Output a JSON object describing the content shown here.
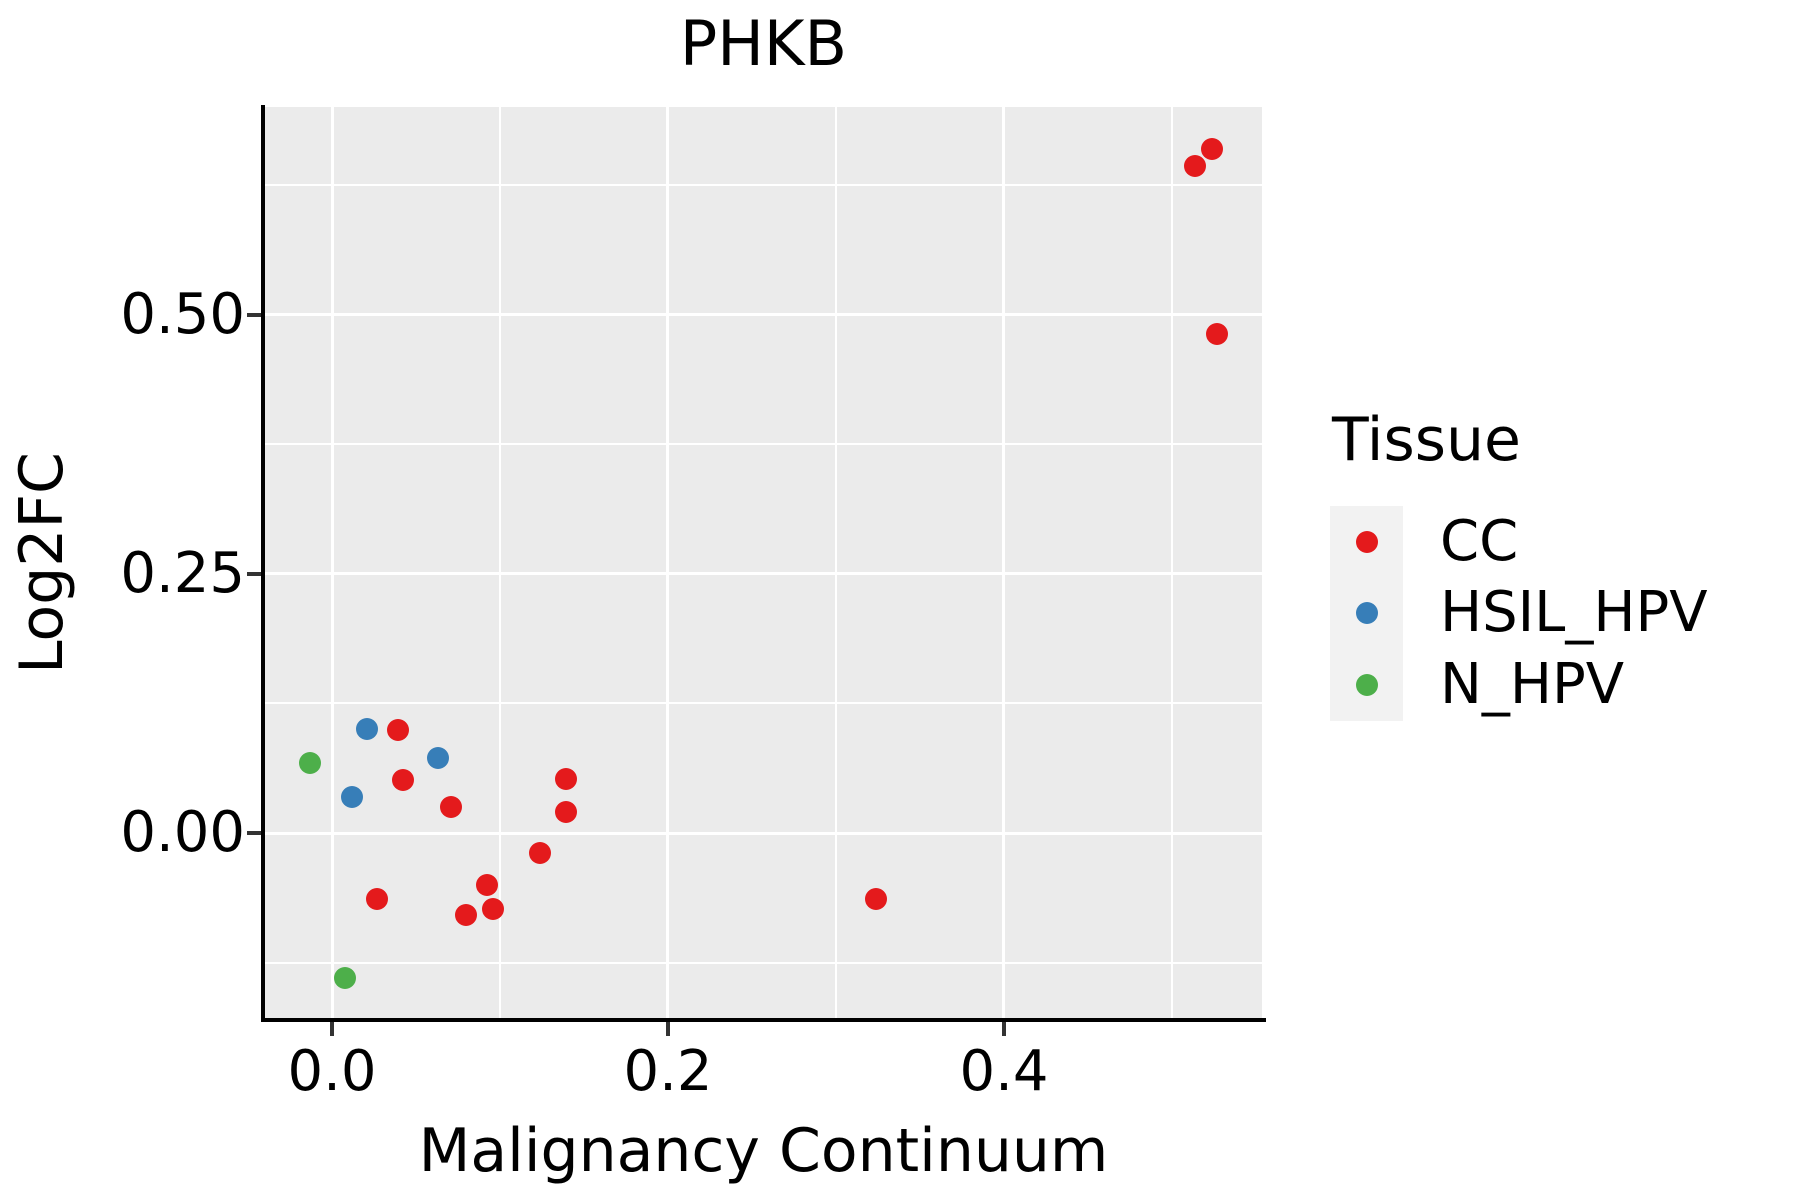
{
  "title": "PHKB",
  "x_axis": {
    "label": "Malignancy Continuum"
  },
  "y_axis": {
    "label": "Log2FC"
  },
  "legend": {
    "title": "Tissue",
    "entries": [
      {
        "label": "CC",
        "color": "#E41A1C"
      },
      {
        "label": "HSIL_HPV",
        "color": "#377EB8"
      },
      {
        "label": "N_HPV",
        "color": "#4DAF4A"
      }
    ]
  },
  "chart_data": {
    "type": "scatter",
    "title": "PHKB",
    "xlabel": "Malignancy Continuum",
    "ylabel": "Log2FC",
    "legend_title": "Tissue",
    "legend_position": "right",
    "grid": "on",
    "panel_bg": "#EBEBEB",
    "gridline_color": "#FFFFFF",
    "legend_key_bg": "#F2F2F2",
    "xlim": [
      -0.0399,
      0.5536
    ],
    "ylim": [
      -0.1803,
      0.7001
    ],
    "x_ticks": [
      0.0,
      0.2,
      0.4
    ],
    "x_tick_labels": [
      "0.0",
      "0.2",
      "0.4"
    ],
    "x_minor_ticks": [
      0.1,
      0.3,
      0.5
    ],
    "y_ticks": [
      0.0,
      0.25,
      0.5
    ],
    "y_tick_labels": [
      "0.00",
      "0.25",
      "0.50"
    ],
    "y_minor_ticks": [
      -0.125,
      0.125,
      0.375,
      0.625
    ],
    "series": [
      {
        "name": "CC",
        "color": "#E41A1C",
        "points": [
          [
            0.039,
            0.099
          ],
          [
            0.042,
            0.051
          ],
          [
            0.071,
            0.025
          ],
          [
            0.139,
            0.052
          ],
          [
            0.139,
            0.02
          ],
          [
            0.124,
            -0.019
          ],
          [
            0.027,
            -0.064
          ],
          [
            0.092,
            -0.05
          ],
          [
            0.08,
            -0.079
          ],
          [
            0.096,
            -0.073
          ],
          [
            0.324,
            -0.064
          ],
          [
            0.514,
            0.643
          ],
          [
            0.524,
            0.66
          ],
          [
            0.527,
            0.481
          ]
        ]
      },
      {
        "name": "HSIL_HPV",
        "color": "#377EB8",
        "points": [
          [
            0.021,
            0.1
          ],
          [
            0.063,
            0.072
          ],
          [
            0.012,
            0.035
          ]
        ]
      },
      {
        "name": "N_HPV",
        "color": "#4DAF4A",
        "points": [
          [
            -0.013,
            0.068
          ],
          [
            0.008,
            -0.14
          ]
        ]
      }
    ]
  }
}
